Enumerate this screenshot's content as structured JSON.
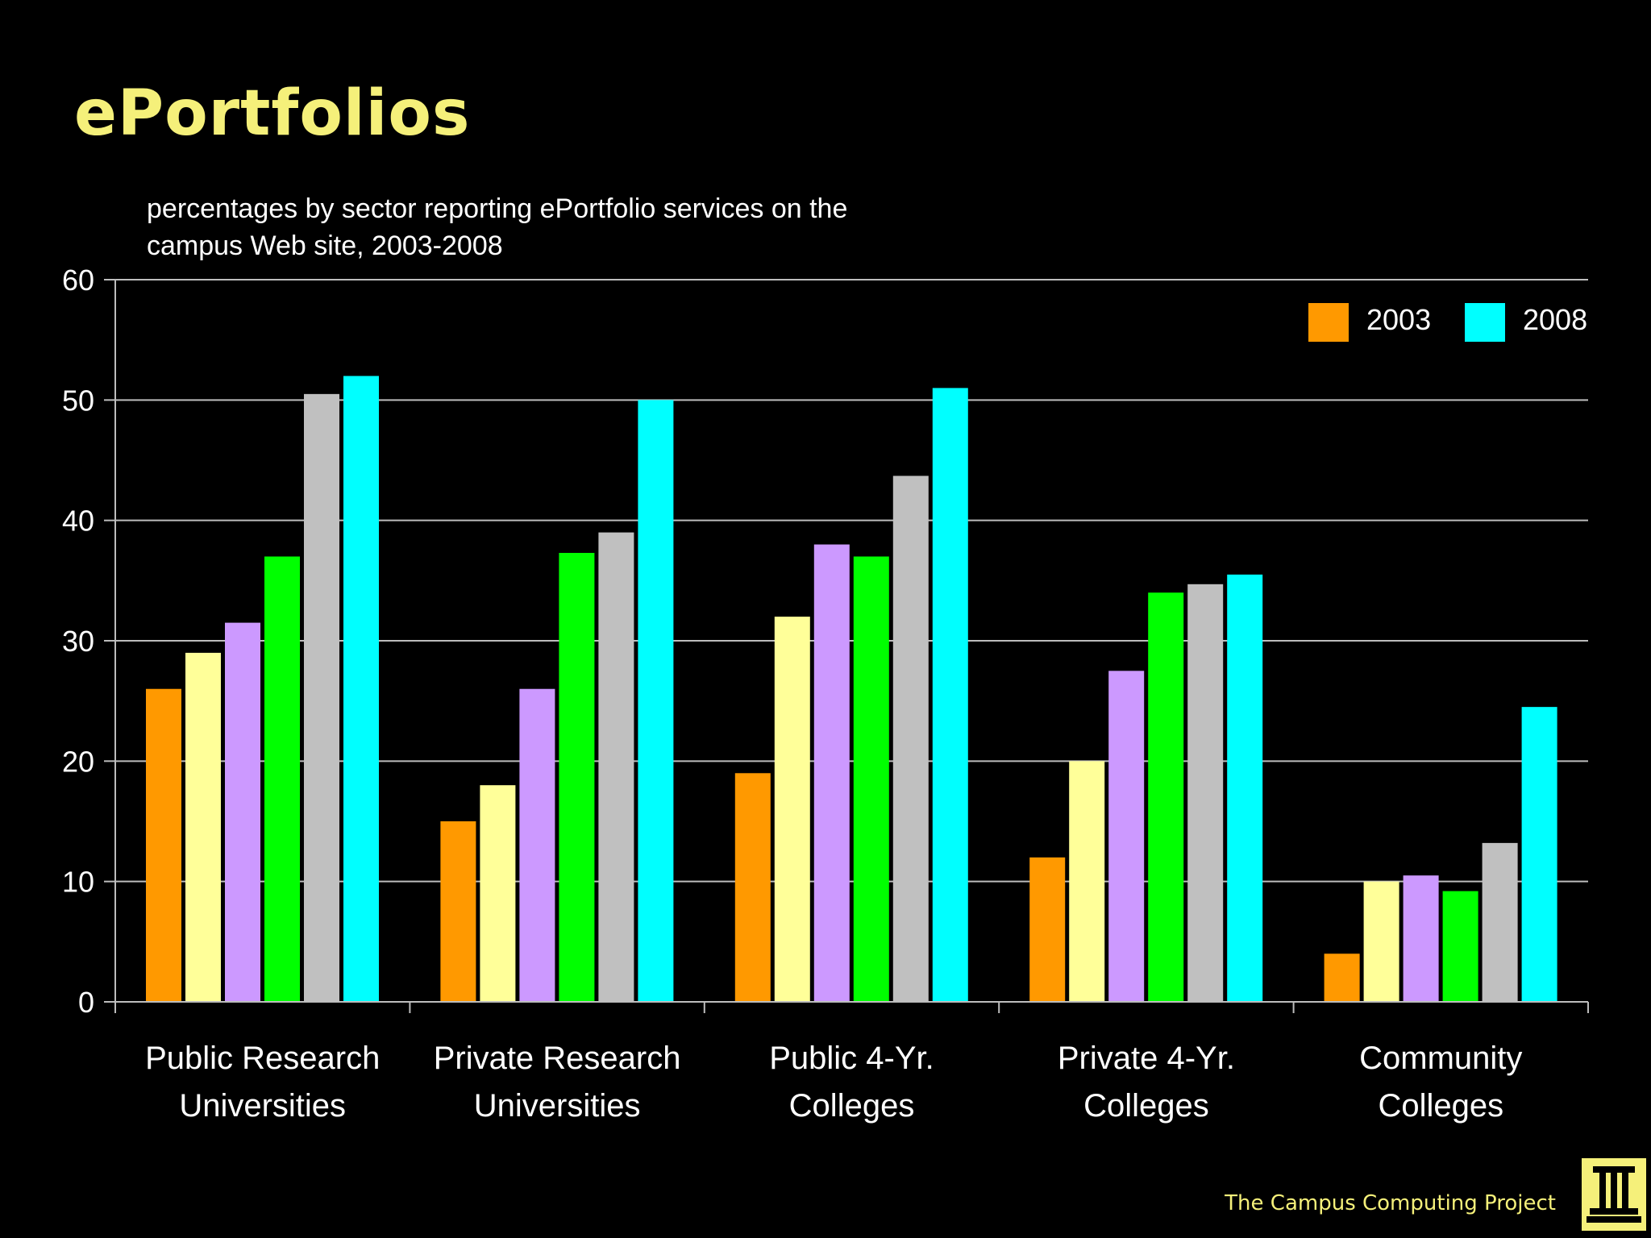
{
  "slide": {
    "title": "ePortfolios",
    "subtitle_line1": "percentages by sector reporting ePortfolio services on the",
    "subtitle_line2": "campus Web site, 2003-2008",
    "footer": "The Campus Computing Project",
    "logo_icon": "campus-computing-project-logo-icon"
  },
  "colors": {
    "background": "#000000",
    "title": "#f5f07a",
    "text": "#ffffff",
    "gridline": "#bdbdbd",
    "series": [
      "#ff9900",
      "#ffff99",
      "#cc99ff",
      "#00ff00",
      "#c0c0c0",
      "#00ffff"
    ]
  },
  "chart_data": {
    "type": "bar",
    "title": "percentages by sector reporting ePortfolio services on the campus Web site, 2003-2008",
    "xlabel": "",
    "ylabel": "",
    "ylim": [
      0,
      60
    ],
    "yticks": [
      0,
      10,
      20,
      30,
      40,
      50,
      60
    ],
    "grid": true,
    "legend_position": "top-right",
    "categories": [
      [
        "Public Research",
        "Universities"
      ],
      [
        "Private Research",
        "Universities"
      ],
      [
        "Public 4-Yr.",
        "Colleges"
      ],
      [
        "Private 4-Yr.",
        "Colleges"
      ],
      [
        "Community",
        "Colleges"
      ]
    ],
    "series": [
      {
        "name": "2003",
        "in_legend": true,
        "values": [
          26,
          15,
          19,
          12,
          4
        ]
      },
      {
        "name": "",
        "in_legend": false,
        "values": [
          29,
          18,
          32,
          20,
          10
        ]
      },
      {
        "name": "",
        "in_legend": false,
        "values": [
          31.5,
          26,
          38,
          27.5,
          10.5
        ]
      },
      {
        "name": "",
        "in_legend": false,
        "values": [
          37,
          37.3,
          37,
          34,
          9.2
        ]
      },
      {
        "name": "",
        "in_legend": false,
        "values": [
          50.5,
          39,
          43.7,
          34.7,
          13.2
        ]
      },
      {
        "name": "2008",
        "in_legend": true,
        "values": [
          52,
          50,
          51,
          35.5,
          24.5
        ]
      }
    ]
  }
}
